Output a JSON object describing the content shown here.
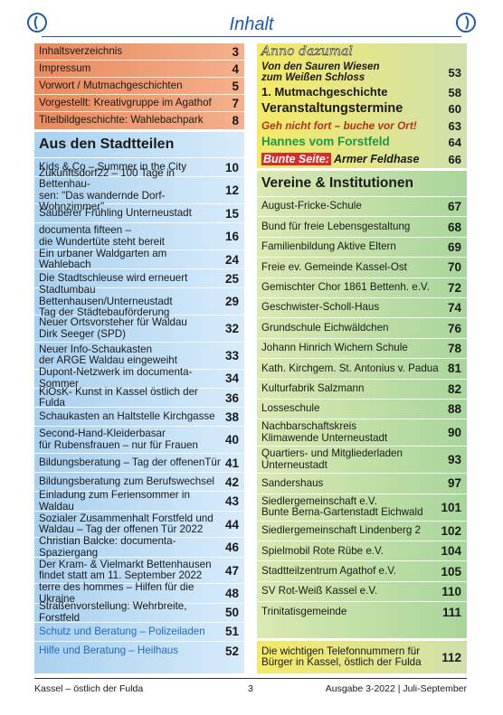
{
  "header": {
    "title": "Inhalt"
  },
  "box_a": [
    {
      "title": "Inhaltsverzeichnis",
      "page": "3"
    },
    {
      "title": "Impressum",
      "page": "4"
    },
    {
      "title": "Vorwort  /  Mutmachgeschichten",
      "page": "5"
    },
    {
      "title": "Vorgestellt: Kreativgruppe im Agathof",
      "page": "7"
    },
    {
      "title": "Titelbildgeschichte: Wahlebachpark",
      "page": "8"
    }
  ],
  "box_b": {
    "heading": "Aus den Stadtteilen",
    "items": [
      {
        "title": "Kids & Co – Summer in the City",
        "page": "10",
        "tall": false
      },
      {
        "title": "Zukunftsdorf22 – 100 Tage in Bettenhau-\nsen: \"Das wandernde Dorf-Wohnzimmer\"",
        "page": "12",
        "tall": true
      },
      {
        "title": "Sauberer Frühling Unterneustadt",
        "page": "15",
        "tall": false
      },
      {
        "title": "documenta fifteen –\ndie Wundertüte steht bereit",
        "page": "16",
        "tall": true
      },
      {
        "title": "Ein urbaner Waldgarten am Wahlebach",
        "page": "24",
        "tall": false
      },
      {
        "title": "Die Stadtschleuse wird erneuert",
        "page": "25",
        "tall": false
      },
      {
        "title": "Stadtumbau Bettenhausen/Unterneustadt\nTag der Städtebauförderung",
        "page": "29",
        "tall": true
      },
      {
        "title": "Neuer Ortsvorsteher für Waldau\nDirk Seeger (SPD)",
        "page": "32",
        "tall": true
      },
      {
        "title": "Neuer Info-Schaukasten\nder ARGE Waldau eingeweiht",
        "page": "33",
        "tall": true
      },
      {
        "title": "Dupont-Netzwerk im documenta-Sommer",
        "page": "34",
        "tall": false
      },
      {
        "title": "KiOsK- Kunst in Kassel östlich der Fulda",
        "page": "36",
        "tall": false
      },
      {
        "title": "Schaukasten an Haltstelle Kirchgasse",
        "page": "38",
        "tall": false
      },
      {
        "title": "Second-Hand-Kleiderbasar\nfür Rubensfrauen – nur für Frauen",
        "page": "40",
        "tall": true
      },
      {
        "title": "Bildungsberatung – Tag der offenenTür",
        "page": "41",
        "tall": false
      },
      {
        "title": "Bildungsberatung zum Berufswechsel",
        "page": "42",
        "tall": false
      },
      {
        "title": "Einladung zum Feriensommer in Waldau",
        "page": "43",
        "tall": false
      },
      {
        "title": "Sozialer Zusammenhalt Forstfeld und\nWaldau – Tag der offenen Tür 2022",
        "page": "44",
        "tall": true
      },
      {
        "title": "Christian Balcke: documenta-Spaziergang",
        "page": "46",
        "tall": false
      },
      {
        "title": "Der Kram- & Vielmarkt Bettenhausen\nfindet statt am 11. September 2022",
        "page": "47",
        "tall": true
      },
      {
        "title": "terre des hommes – Hilfen für die Ukraine",
        "page": "48",
        "tall": false
      },
      {
        "title": "Straßenvorstellung: Wehrbreite, Forstfeld",
        "page": "50",
        "tall": false
      },
      {
        "title": "Schutz und Beratung – Polizeiladen",
        "page": "51",
        "tall": false,
        "blue": true
      },
      {
        "title": "Hilfe und Beratung – Heilhaus",
        "page": "52",
        "tall": false,
        "blue": true
      }
    ]
  },
  "box_c": {
    "heading": "Anno dazumal",
    "items": [
      {
        "title": "Von den Sauren Wiesen\nzum Weißen Schloss",
        "page": "53",
        "style": "boldital",
        "height": 28
      },
      {
        "title": "1. Mutmachgeschichte",
        "page": "58",
        "style": "outline",
        "height": 17
      },
      {
        "title": "Veranstaltungstermine",
        "page": "60",
        "style": "big",
        "height": 19
      },
      {
        "title": "Geh nicht fort – buche vor Ort!",
        "page": "63",
        "style": "redital",
        "height": 18
      },
      {
        "title": "Hannes vom Forstfeld",
        "page": "64",
        "style": "green",
        "height": 18
      },
      {
        "title": "Bunte Seite: Armer Feldhase",
        "page": "66",
        "style": "bunte",
        "height": 20
      }
    ],
    "bunte_label": "Bunte Seite:",
    "bunte_rest": " Armer Feldhase"
  },
  "box_d": {
    "heading": "Vereine & Institutionen",
    "items": [
      {
        "title": "August-Fricke-Schule",
        "page": "67",
        "tall": false
      },
      {
        "title": "Bund für freie Lebensgestaltung",
        "page": "68",
        "tall": false
      },
      {
        "title": "Familienbildung Aktive Eltern",
        "page": "69",
        "tall": false
      },
      {
        "title": "Freie ev. Gemeinde Kassel-Ost",
        "page": "70",
        "tall": false
      },
      {
        "title": "Gemischter Chor 1861 Bettenh. e.V.",
        "page": "72",
        "tall": false
      },
      {
        "title": "Geschwister-Scholl-Haus",
        "page": "74",
        "tall": false
      },
      {
        "title": "Grundschule Eichwäldchen",
        "page": "76",
        "tall": false
      },
      {
        "title": "Johann Hinrich Wichern Schule",
        "page": "78",
        "tall": false
      },
      {
        "title": "Kath. Kirchgem. St. Antonius v. Padua",
        "page": "81",
        "tall": false
      },
      {
        "title": "Kulturfabrik Salzmann",
        "page": "82",
        "tall": false
      },
      {
        "title": "Losseschule",
        "page": "88",
        "tall": false
      },
      {
        "title": "Nachbarschaftskreis\nKlimawende Unterneustadt",
        "page": "90",
        "tall": true
      },
      {
        "title": "Quartiers- und Mitgliederladen\nUnterneustadt",
        "page": "93",
        "tall": true
      },
      {
        "title": "Sandershaus",
        "page": "97",
        "tall": false
      },
      {
        "title": "Siedlergemeinschaft e.V.\nBunte Berna-Gartenstadt Eichwald",
        "page": "101",
        "tall": true
      },
      {
        "title": "Siedlergemeinschaft Lindenberg 2",
        "page": "102",
        "tall": false
      },
      {
        "title": "Spielmobil Rote Rübe e.V.",
        "page": "104",
        "tall": false
      },
      {
        "title": "Stadtteilzentrum Agathof e.V.",
        "page": "105",
        "tall": false
      },
      {
        "title": "SV Rot-Weiß Kassel e.V.",
        "page": "110",
        "tall": false
      },
      {
        "title": "Trinitatisgemeinde",
        "page": "111",
        "tall": false
      }
    ]
  },
  "box_e": {
    "title": "Die wichtigen Telefonnummern für\nBürger in Kassel, östlich der Fulda",
    "page": "112"
  },
  "footer": {
    "left": "Kassel – östlich der Fulda",
    "page": "3",
    "right": "Ausgabe 3-2022 | Juli-September"
  },
  "colors": {
    "title_blue": "#1f5aa8",
    "orange_box": "#ea8a5d",
    "blue_box": "#a9d0ef",
    "yellow_box": "#f5ea66",
    "green_box": "#a8d59b"
  },
  "icons": {
    "logo": "stylized-figure-logo-icon"
  }
}
